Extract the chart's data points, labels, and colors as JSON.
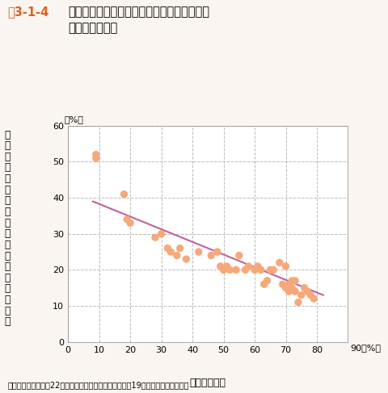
{
  "title_label": "図3-1-4",
  "title_main": "自動車依存度と中心市街地の売上比率の関係",
  "title_sub": "（都道府県別）",
  "xlabel": "自動車依存度",
  "ylabel_chars": [
    "全",
    "体",
    "の",
    "売",
    "上",
    "げ",
    "に",
    "対",
    "す",
    "る",
    "中",
    "心",
    "市",
    "街",
    "地",
    "の",
    "比",
    "率"
  ],
  "xlabel_unit": "90（%）",
  "ylabel_unit": "（%）",
  "source": "資料：総務省「平成22年国勢調査」、経済産業省「平成19年商業統計」より作成",
  "xlim": [
    0,
    90
  ],
  "ylim": [
    0,
    60
  ],
  "xticks": [
    0,
    10,
    20,
    30,
    40,
    50,
    60,
    70,
    80
  ],
  "xtick_labels": [
    "0",
    "10",
    "20",
    "30",
    "40",
    "50",
    "60",
    "70",
    "80"
  ],
  "yticks": [
    0,
    10,
    20,
    30,
    40,
    50,
    60
  ],
  "scatter_x": [
    9,
    9,
    18,
    19,
    20,
    28,
    30,
    32,
    33,
    35,
    36,
    38,
    42,
    46,
    48,
    49,
    50,
    51,
    52,
    54,
    55,
    57,
    58,
    60,
    61,
    62,
    63,
    64,
    65,
    66,
    68,
    69,
    70,
    70,
    71,
    71,
    72,
    72,
    73,
    73,
    74,
    75,
    76,
    77,
    78,
    79
  ],
  "scatter_y": [
    52,
    51,
    41,
    34,
    33,
    29,
    30,
    26,
    25,
    24,
    26,
    23,
    25,
    24,
    25,
    21,
    20,
    21,
    20,
    20,
    24,
    20,
    21,
    20,
    21,
    20,
    16,
    17,
    20,
    20,
    22,
    16,
    21,
    15,
    14,
    16,
    17,
    15,
    17,
    14,
    11,
    13,
    15,
    14,
    13,
    12
  ],
  "trend_x": [
    8,
    82
  ],
  "trend_y": [
    39,
    13
  ],
  "dot_color": "#F5A878",
  "dot_edgecolor": "none",
  "dot_size": 45,
  "trend_color": "#C060A0",
  "trend_linewidth": 1.5,
  "background_color": "#FAF5F0",
  "plot_bg_color": "#FFFFFF",
  "grid_color": "#BBBBBB",
  "grid_linestyle": "--",
  "grid_linewidth": 0.7,
  "title_label_color": "#E06020",
  "title_fontsize": 10.5,
  "label_fontsize": 9,
  "tick_fontsize": 8,
  "source_fontsize": 7
}
